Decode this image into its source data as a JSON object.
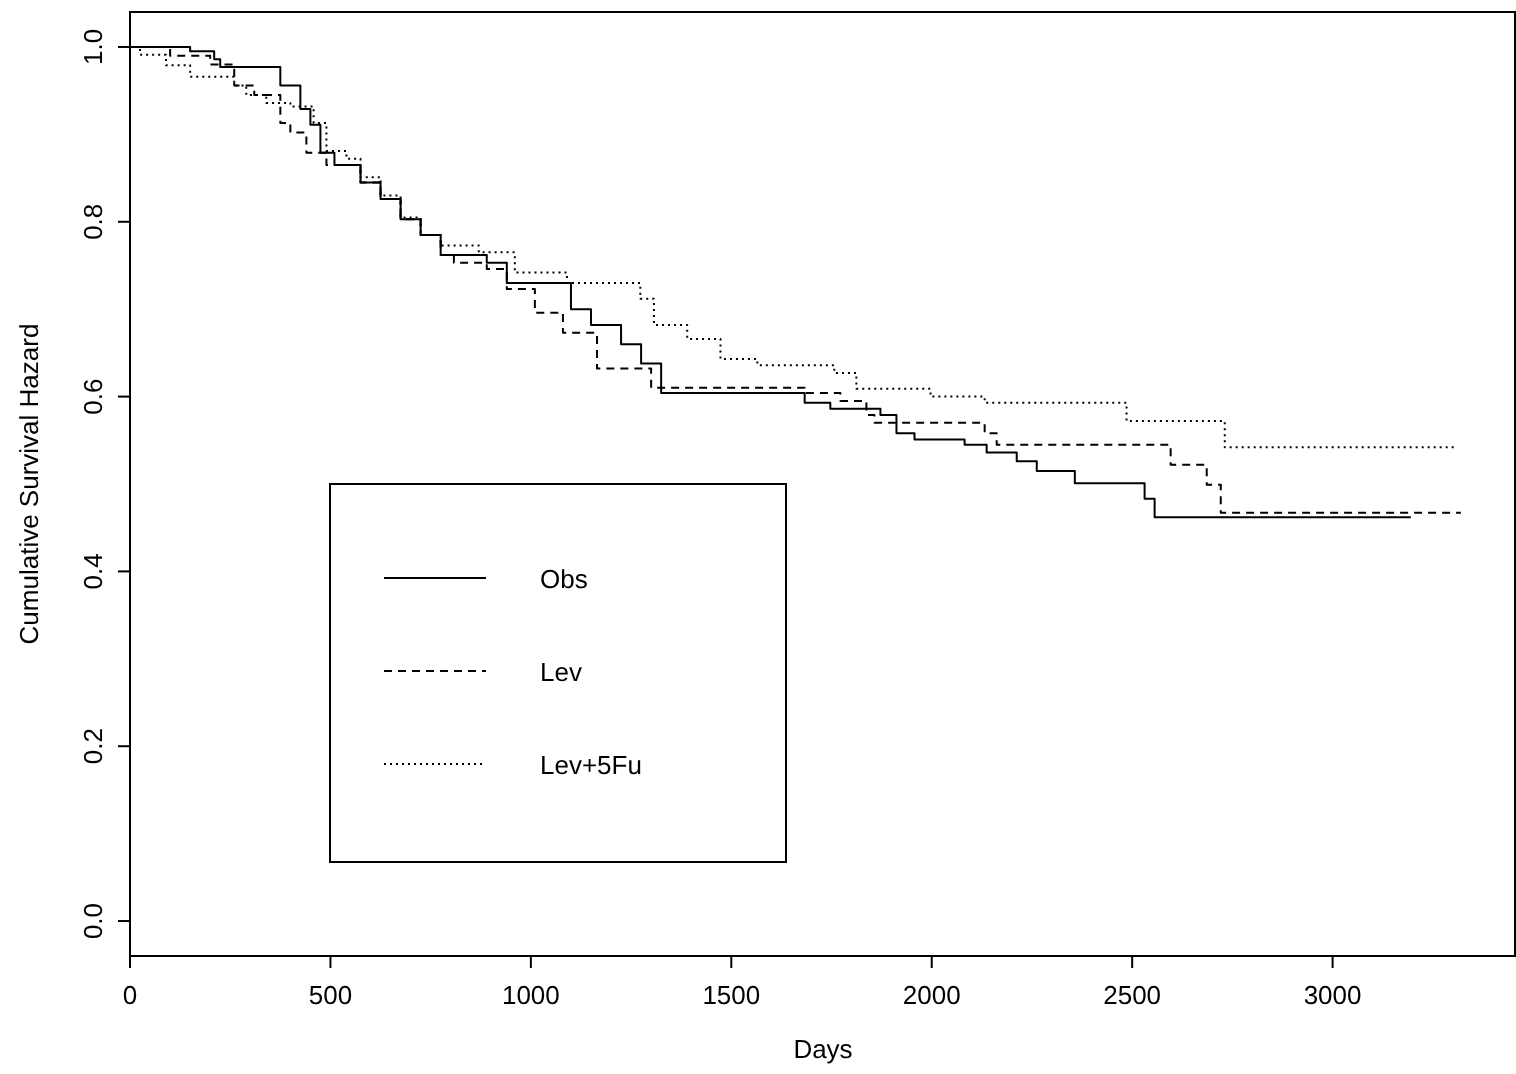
{
  "chart_data": {
    "type": "step",
    "xlabel": "Days",
    "ylabel": "Cumulative Survival Hazard",
    "xlim": [
      0,
      3455
    ],
    "ylim": [
      -0.04,
      1.04
    ],
    "xticks": [
      0,
      500,
      1000,
      1500,
      2000,
      2500,
      3000
    ],
    "yticks": [
      {
        "value": 0,
        "label": "0.0"
      },
      0.2,
      0.4,
      0.6,
      0.8,
      {
        "value": 1,
        "label": "1.0"
      }
    ],
    "grid": false,
    "legend": "bottom left",
    "marker": "none",
    "series": [
      {
        "name": "Obs",
        "color": "#000000",
        "line_style": "solid",
        "x": [
          0,
          150,
          210,
          225,
          375,
          425,
          450,
          475,
          510,
          575,
          625,
          675,
          725,
          775,
          890,
          940,
          1100,
          1150,
          1225,
          1275,
          1325,
          1683,
          1747,
          1872,
          1912,
          1957,
          2082,
          2137,
          2212,
          2262,
          2357,
          2531,
          2556,
          3195
        ],
        "values": [
          1,
          0.995,
          0.986,
          0.977,
          0.956,
          0.929,
          0.911,
          0.879,
          0.865,
          0.845,
          0.826,
          0.803,
          0.785,
          0.762,
          0.753,
          0.73,
          0.7,
          0.682,
          0.66,
          0.638,
          0.604,
          0.593,
          0.586,
          0.579,
          0.558,
          0.551,
          0.545,
          0.536,
          0.526,
          0.515,
          0.501,
          0.483,
          0.462,
          0.462
        ]
      },
      {
        "name": "Lev",
        "color": "#000000",
        "line_style": "dashed",
        "x": [
          0,
          100,
          200,
          260,
          310,
          375,
          400,
          440,
          490,
          575,
          625,
          675,
          725,
          775,
          808,
          890,
          940,
          1010,
          1080,
          1165,
          1300,
          1683,
          1772,
          1837,
          1857,
          2132,
          2162,
          2596,
          2686,
          2721,
          3320
        ],
        "values": [
          1,
          0.99,
          0.98,
          0.956,
          0.945,
          0.913,
          0.902,
          0.879,
          0.865,
          0.845,
          0.826,
          0.803,
          0.785,
          0.762,
          0.753,
          0.746,
          0.723,
          0.696,
          0.673,
          0.632,
          0.61,
          0.604,
          0.595,
          0.579,
          0.57,
          0.558,
          0.545,
          0.522,
          0.499,
          0.467,
          0.467
        ]
      },
      {
        "name": "Lev+5Fu",
        "color": "#000000",
        "line_style": "dotted",
        "x": [
          0,
          25,
          90,
          150,
          260,
          290,
          340,
          400,
          458,
          490,
          540,
          575,
          625,
          675,
          725,
          775,
          870,
          960,
          1090,
          1273,
          1307,
          1390,
          1473,
          1565,
          1757,
          1812,
          1997,
          2132,
          2486,
          2731,
          3310
        ],
        "values": [
          1,
          0.991,
          0.979,
          0.966,
          0.956,
          0.945,
          0.936,
          0.932,
          0.913,
          0.881,
          0.872,
          0.851,
          0.83,
          0.805,
          0.785,
          0.773,
          0.765,
          0.742,
          0.73,
          0.712,
          0.682,
          0.666,
          0.643,
          0.636,
          0.627,
          0.609,
          0.6,
          0.593,
          0.572,
          0.542,
          0.542
        ]
      }
    ]
  }
}
